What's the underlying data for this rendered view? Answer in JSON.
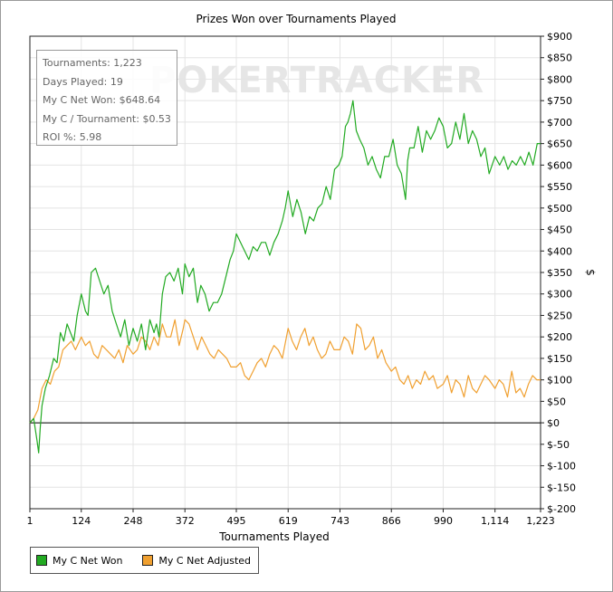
{
  "watermark": "POKERTRACKER",
  "stats": [
    "Tournaments: 1,223",
    "Days Played: 19",
    "My C Net Won: $648.64",
    "My C / Tournament: $0.53",
    "ROI %: 5.98"
  ],
  "colors": {
    "net_won": "#22aa22",
    "net_adjusted": "#f0a030",
    "grid": "#e4e4e4",
    "zero_line": "#000000"
  },
  "chart_data": {
    "type": "line",
    "title": "Prizes Won over Tournaments Played",
    "xlabel": "Tournaments Played",
    "ylabel": "$",
    "xlim": [
      1,
      1223
    ],
    "ylim": [
      -200,
      900
    ],
    "x_ticks": [
      1,
      124,
      248,
      372,
      495,
      619,
      743,
      866,
      990,
      1114,
      1223
    ],
    "x_tick_labels": [
      "1",
      "124",
      "248",
      "372",
      "495",
      "619",
      "743",
      "866",
      "990",
      "1,114",
      "1,223"
    ],
    "y_ticks": [
      -200,
      -150,
      -100,
      -50,
      0,
      50,
      100,
      150,
      200,
      250,
      300,
      350,
      400,
      450,
      500,
      550,
      600,
      650,
      700,
      750,
      800,
      850,
      900
    ],
    "y_tick_labels": [
      "$-200",
      "$-150",
      "$-100",
      "$-50",
      "$0",
      "$50",
      "$100",
      "$150",
      "$200",
      "$250",
      "$300",
      "$350",
      "$400",
      "$450",
      "$500",
      "$550",
      "$600",
      "$650",
      "$700",
      "$750",
      "$800",
      "$850",
      "$900"
    ],
    "grid": true,
    "legend": "bottom-left",
    "series": [
      {
        "name": "My C Net Won",
        "color": "#22aa22",
        "x": [
          1,
          10,
          18,
          22,
          26,
          30,
          38,
          48,
          58,
          66,
          74,
          82,
          90,
          98,
          106,
          114,
          124,
          134,
          140,
          148,
          158,
          168,
          178,
          188,
          198,
          208,
          218,
          228,
          238,
          248,
          258,
          268,
          278,
          288,
          298,
          304,
          310,
          318,
          326,
          336,
          346,
          356,
          366,
          372,
          382,
          392,
          402,
          410,
          420,
          430,
          440,
          450,
          460,
          470,
          480,
          488,
          495,
          505,
          515,
          525,
          535,
          545,
          555,
          565,
          575,
          585,
          595,
          605,
          612,
          619,
          630,
          640,
          650,
          660,
          670,
          680,
          690,
          700,
          710,
          720,
          730,
          740,
          748,
          756,
          762,
          768,
          774,
          782,
          790,
          800,
          810,
          820,
          830,
          840,
          850,
          860,
          870,
          880,
          890,
          900,
          905,
          910,
          920,
          930,
          940,
          950,
          960,
          970,
          980,
          990,
          1000,
          1010,
          1020,
          1030,
          1040,
          1050,
          1060,
          1070,
          1080,
          1090,
          1100,
          1114,
          1125,
          1135,
          1145,
          1155,
          1165,
          1175,
          1185,
          1195,
          1205,
          1215,
          1223
        ],
        "y": [
          0,
          10,
          -40,
          -70,
          -10,
          40,
          80,
          110,
          150,
          140,
          210,
          190,
          230,
          210,
          190,
          250,
          300,
          260,
          250,
          350,
          360,
          330,
          300,
          320,
          260,
          230,
          200,
          240,
          180,
          220,
          190,
          230,
          170,
          240,
          210,
          230,
          200,
          300,
          340,
          350,
          330,
          360,
          300,
          370,
          340,
          360,
          280,
          320,
          300,
          260,
          280,
          280,
          300,
          340,
          380,
          400,
          440,
          420,
          400,
          380,
          410,
          400,
          420,
          420,
          390,
          420,
          440,
          470,
          500,
          540,
          480,
          520,
          490,
          440,
          480,
          470,
          500,
          510,
          550,
          520,
          590,
          600,
          620,
          690,
          700,
          720,
          750,
          680,
          660,
          640,
          600,
          620,
          590,
          570,
          620,
          620,
          660,
          600,
          580,
          520,
          610,
          640,
          640,
          690,
          630,
          680,
          660,
          680,
          710,
          690,
          640,
          650,
          700,
          660,
          720,
          650,
          680,
          660,
          620,
          640,
          580,
          620,
          600,
          620,
          590,
          610,
          600,
          620,
          600,
          630,
          600,
          650,
          650
        ]
      },
      {
        "name": "My C Net Adjusted",
        "color": "#f0a030",
        "x": [
          1,
          10,
          20,
          30,
          40,
          50,
          60,
          70,
          80,
          90,
          100,
          110,
          124,
          134,
          144,
          154,
          164,
          174,
          184,
          194,
          204,
          214,
          224,
          234,
          248,
          258,
          268,
          278,
          288,
          298,
          308,
          318,
          328,
          338,
          348,
          358,
          368,
          372,
          382,
          392,
          402,
          412,
          422,
          432,
          442,
          452,
          462,
          472,
          482,
          495,
          505,
          515,
          525,
          535,
          545,
          555,
          565,
          575,
          585,
          595,
          605,
          619,
          629,
          639,
          649,
          659,
          669,
          679,
          689,
          699,
          709,
          719,
          729,
          743,
          753,
          763,
          773,
          783,
          793,
          803,
          813,
          823,
          833,
          843,
          853,
          866,
          876,
          886,
          896,
          906,
          916,
          926,
          936,
          946,
          956,
          966,
          976,
          990,
          1000,
          1010,
          1020,
          1030,
          1040,
          1050,
          1060,
          1070,
          1080,
          1090,
          1100,
          1114,
          1124,
          1134,
          1144,
          1154,
          1164,
          1174,
          1184,
          1194,
          1204,
          1214,
          1223
        ],
        "y": [
          0,
          10,
          30,
          80,
          100,
          90,
          120,
          130,
          170,
          180,
          190,
          170,
          200,
          180,
          190,
          160,
          150,
          180,
          170,
          160,
          150,
          170,
          140,
          180,
          160,
          170,
          200,
          190,
          170,
          200,
          180,
          230,
          200,
          200,
          240,
          180,
          220,
          240,
          230,
          200,
          170,
          200,
          180,
          160,
          150,
          170,
          160,
          150,
          130,
          130,
          140,
          110,
          100,
          120,
          140,
          150,
          130,
          160,
          180,
          170,
          150,
          220,
          190,
          170,
          200,
          220,
          180,
          200,
          170,
          150,
          160,
          190,
          170,
          170,
          200,
          190,
          160,
          230,
          220,
          170,
          180,
          200,
          150,
          170,
          140,
          120,
          130,
          100,
          90,
          110,
          80,
          100,
          90,
          120,
          100,
          110,
          80,
          90,
          110,
          70,
          100,
          90,
          60,
          110,
          80,
          70,
          90,
          110,
          100,
          80,
          100,
          90,
          60,
          120,
          70,
          80,
          60,
          90,
          110,
          100,
          100
        ]
      }
    ]
  }
}
